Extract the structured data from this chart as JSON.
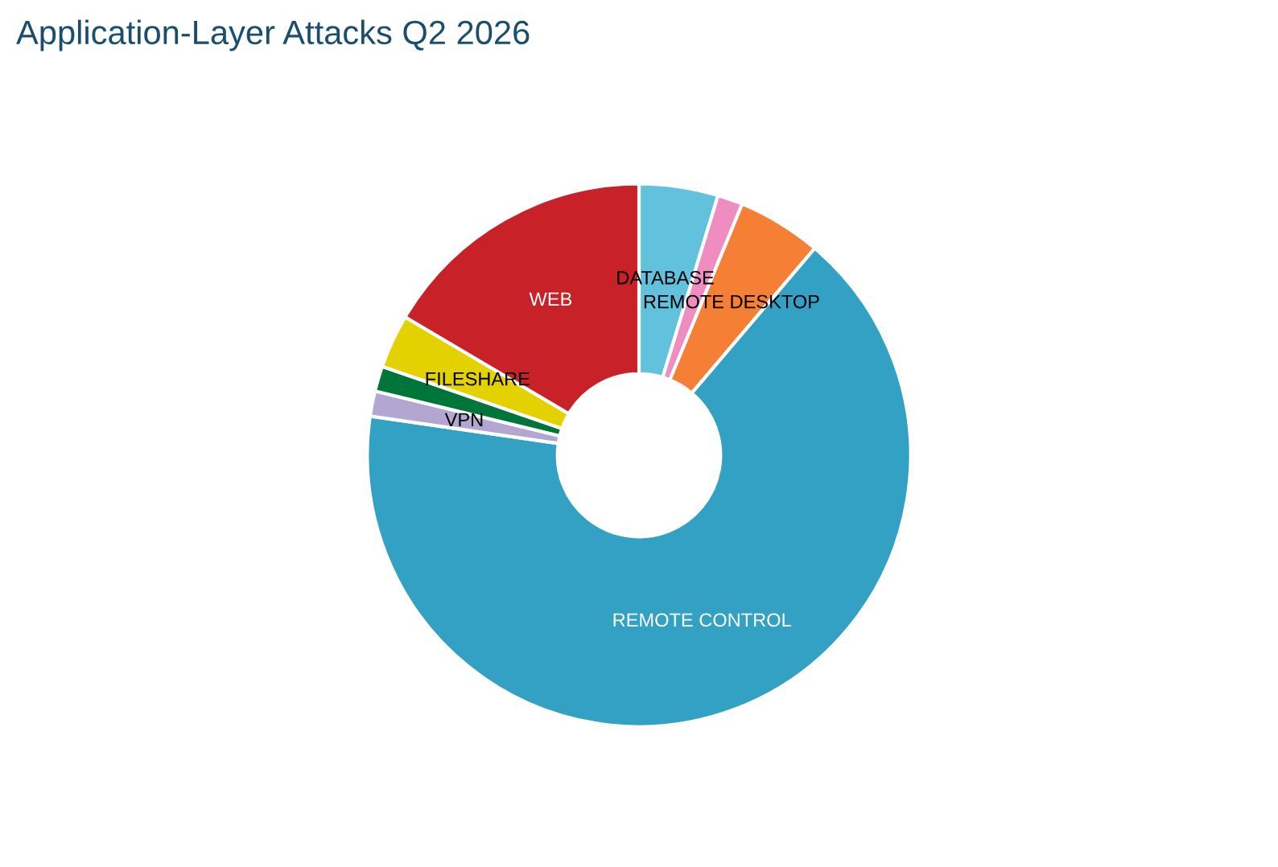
{
  "chart_data": {
    "type": "donut",
    "title": "Application-Layer Attacks Q2 2026",
    "categories": [
      "DATABASE",
      null,
      "REMOTE DESKTOP",
      "REMOTE CONTROL",
      "VPN",
      null,
      "FILESHARE",
      "WEB"
    ],
    "values": [
      4.7,
      1.5,
      5.0,
      66.1,
      1.5,
      1.5,
      3.2,
      16.5
    ],
    "colors": [
      "#62c1dc",
      "#f08dc0",
      "#f47f35",
      "#33a1c4",
      "#b3a7d1",
      "#00753a",
      "#e3d200",
      "#c82127"
    ],
    "legend": false
  }
}
